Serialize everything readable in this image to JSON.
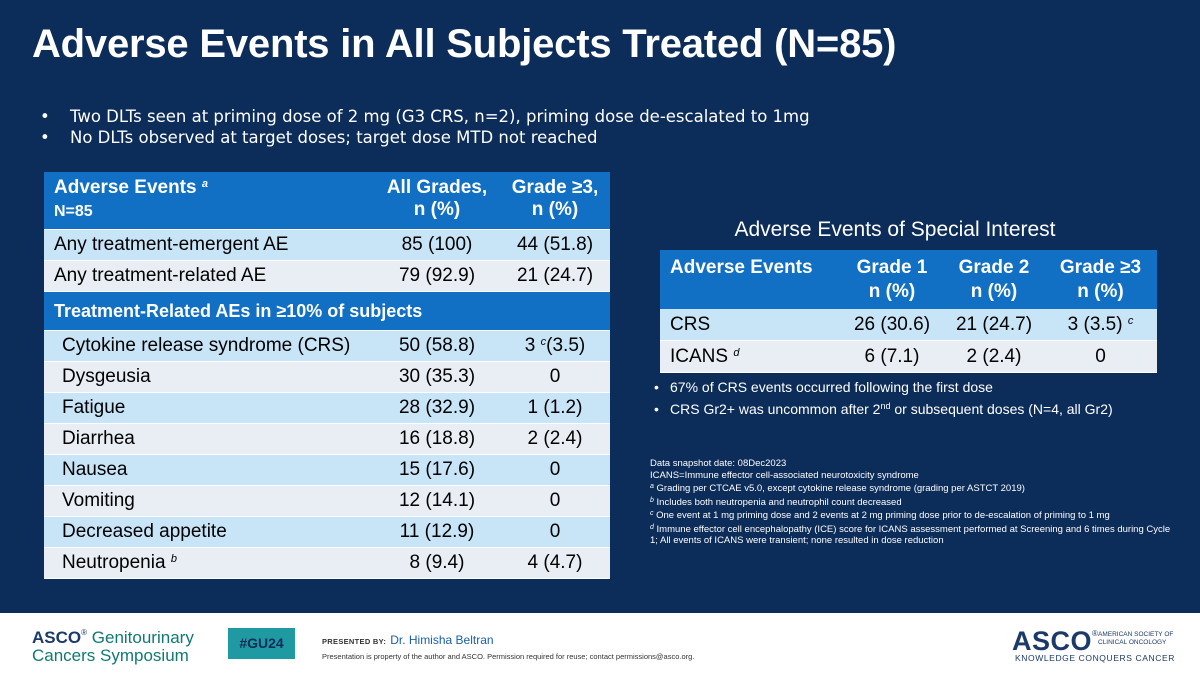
{
  "title": "Adverse Events in All Subjects Treated (N=85)",
  "bullets": [
    "Two DLTs seen at priming dose of 2 mg (G3 CRS, n=2), priming dose de-escalated to 1mg",
    "No DLTs observed at target doses; target dose MTD not reached"
  ],
  "ae_table": {
    "header": {
      "col1": "Adverse Events",
      "col1_sup": "a",
      "col1_sub": "N=85",
      "col2_l1": "All Grades,",
      "col2_l2": "n (%)",
      "col3_l1": "Grade ≥3,",
      "col3_l2": "n (%)"
    },
    "summary_rows": [
      {
        "label": "Any treatment-emergent AE",
        "all": "85 (100)",
        "g3": "44 (51.8)"
      },
      {
        "label": "Any treatment-related AE",
        "all": "79 (92.9)",
        "g3": "21 (24.7)"
      }
    ],
    "section_label": "Treatment-Related AEs in ≥10% of subjects",
    "rows": [
      {
        "label": "Cytokine release syndrome (CRS)",
        "all": "50 (58.8)",
        "g3_pre": "3",
        "g3_sup": "c",
        "g3_post": "(3.5)"
      },
      {
        "label": "Dysgeusia",
        "all": "30 (35.3)",
        "g3": "0"
      },
      {
        "label": "Fatigue",
        "all": "28 (32.9)",
        "g3": "1 (1.2)"
      },
      {
        "label": "Diarrhea",
        "all": "16 (18.8)",
        "g3": "2 (2.4)"
      },
      {
        "label": "Nausea",
        "all": "15 (17.6)",
        "g3": "0"
      },
      {
        "label": "Vomiting",
        "all": "12 (14.1)",
        "g3": "0"
      },
      {
        "label": "Decreased appetite",
        "all": "11 (12.9)",
        "g3": "0"
      },
      {
        "label": "Neutropenia",
        "label_sup": "b",
        "all": "8 (9.4)",
        "g3": "4 (4.7)"
      }
    ]
  },
  "aesi": {
    "title": "Adverse Events of Special Interest",
    "header": {
      "col1": "Adverse Events",
      "col2_l1": "Grade 1",
      "col2_l2": "n (%)",
      "col3_l1": "Grade 2",
      "col3_l2": "n (%)",
      "col4_l1": "Grade ≥3",
      "col4_l2": "n (%)"
    },
    "rows": [
      {
        "label": "CRS",
        "g1": "26 (30.6)",
        "g2": "21 (24.7)",
        "g3": "3 (3.5)",
        "g3_sup": "c"
      },
      {
        "label": "ICANS",
        "label_sup": "d",
        "g1": "6 (7.1)",
        "g2": "2 (2.4)",
        "g3": "0"
      }
    ],
    "notes": [
      {
        "text": "67% of CRS events occurred following the first dose"
      },
      {
        "pre": "CRS Gr2+ was uncommon after 2",
        "sup": "nd",
        "post": " or subsequent doses (N=4, all Gr2)"
      }
    ]
  },
  "footnotes": {
    "snapshot": "Data snapshot date: 08Dec2023",
    "icans_def": "ICANS=Immune effector cell-associated neurotoxicity syndrome",
    "items": [
      {
        "sup": "a",
        "text": " Grading per CTCAE v5.0, except cytokine release syndrome (grading per ASTCT 2019)"
      },
      {
        "sup": "b",
        "text": " Includes both neutropenia and neutrophil count decreased"
      },
      {
        "sup": "c",
        "text": " One event at 1 mg priming dose and 2 events at 2 mg priming dose prior to de-escalation of priming to 1 mg"
      },
      {
        "sup": "d",
        "text": " Immune effector cell encephalopathy (ICE) score for ICANS assessment performed at Screening and 6 times during Cycle 1; All events of ICANS were transient; none resulted in dose reduction"
      }
    ]
  },
  "footer": {
    "asco_gu_brand": "ASCO",
    "asco_gu_l1": "Genitourinary",
    "asco_gu_l2": "Cancers Symposium",
    "hashtag": "#GU24",
    "presented_label": "PRESENTED BY:",
    "presenter": "Dr. Himisha Beltran",
    "property_note": "Presentation is property of the author and ASCO. Permission required for reuse; contact permissions@asco.org.",
    "asco_word": "ASCO",
    "asco_side_l1": "AMERICAN SOCIETY OF",
    "asco_side_l2": "CLINICAL ONCOLOGY",
    "asco_tagline": "KNOWLEDGE CONQUERS CANCER"
  },
  "colors": {
    "background": "#0c2c59",
    "header_blue": "#1270c4",
    "row_light_blue": "#c8e4f7",
    "row_grey": "#e9eef5",
    "teal": "#1f9aa3"
  }
}
